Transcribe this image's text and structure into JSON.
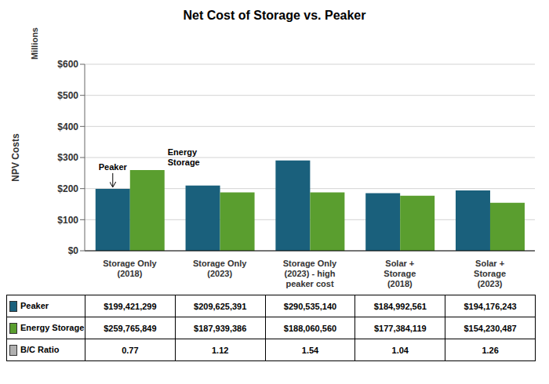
{
  "chart_data": {
    "type": "bar",
    "title": "Net Cost of Storage vs. Peaker",
    "ylabel": "NPV Costs",
    "ylabel_top": "Millions",
    "categories": [
      "Storage Only\n(2018)",
      "Storage Only\n(2023)",
      "Storage Only\n(2023) - high\npeaker cost",
      "Solar +\nStorage\n(2018)",
      "Solar +\nStorage\n(2023)"
    ],
    "series": [
      {
        "name": "Peaker",
        "color": "#1a607c",
        "values": [
          199.421299,
          209.625391,
          290.53514,
          184.992561,
          194.176243
        ],
        "value_labels": [
          "$199,421,299",
          "$209,625,391",
          "$290,535,140",
          "$184,992,561",
          "$194,176,243"
        ],
        "annotation": "Peaker"
      },
      {
        "name": "Energy Storage",
        "color": "#5a9e2f",
        "values": [
          259.765849,
          187.939386,
          188.06056,
          177.384119,
          154.230487
        ],
        "value_labels": [
          "$259,765,849",
          "$187,939,386",
          "$188,060,560",
          "$177,384,119",
          "$154,230,487"
        ],
        "annotation": "Energy\nStorage"
      }
    ],
    "bc_ratio": {
      "name": "B/C Ratio",
      "color": "#b0b0b0",
      "values": [
        0.77,
        1.12,
        1.54,
        1.04,
        1.26
      ]
    },
    "ylim": [
      0,
      600
    ],
    "yticks": [
      {
        "value": 0,
        "label": "$0"
      },
      {
        "value": 100,
        "label": "$100"
      },
      {
        "value": 200,
        "label": "$200"
      },
      {
        "value": 300,
        "label": "$300"
      },
      {
        "value": 400,
        "label": "$400"
      },
      {
        "value": 500,
        "label": "$500"
      },
      {
        "value": 600,
        "label": "$600"
      }
    ],
    "grid": true
  }
}
